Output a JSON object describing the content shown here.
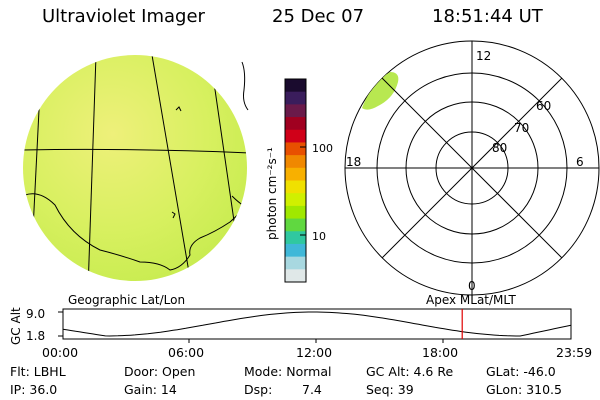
{
  "header": {
    "instrument": "Ultraviolet Imager",
    "date": "25 Dec 07",
    "time": "18:51:44 UT"
  },
  "colorbar": {
    "unit_label": "photon cm⁻²s⁻¹",
    "tick_high": "100",
    "tick_low": "10",
    "colors": [
      "#1a0b2e",
      "#3a1d5c",
      "#6a1a4a",
      "#a00020",
      "#d00018",
      "#e85000",
      "#f08800",
      "#f8b000",
      "#f0e000",
      "#d0f000",
      "#a0e800",
      "#60d840",
      "#30c8a0",
      "#40b8d8",
      "#a8d8e0",
      "#e0e8e8"
    ]
  },
  "polar_plot": {
    "mlt_labels": {
      "top": "12",
      "left": "18",
      "right": "6",
      "bottom": "0"
    },
    "lat_labels": [
      "60",
      "70",
      "80"
    ]
  },
  "left_panel_label": "Geographic Lat/Lon",
  "right_panel_label": "Apex MLat/MLT",
  "altitude_plot": {
    "ylabel": "GC Alt",
    "y_ticks": [
      "9.0",
      "1.8"
    ],
    "x_ticks": [
      "00:00",
      "06:00",
      "12:00",
      "18:00",
      "23:59"
    ],
    "current_marker_hour": 18.86,
    "marker_color": "#e00000"
  },
  "info": {
    "filter": "Flt: LBHL",
    "ip": "IP: 36.0",
    "door": "Door: Open",
    "gain": "Gain: 14",
    "mode": "Mode: Normal",
    "dsp_label": "Dsp:",
    "dsp_value": "7.4",
    "gc_alt": "GC Alt: 4.6 Re",
    "seq": "Seq: 39",
    "glat": "GLat: -46.0",
    "glon": "GLon: 310.5"
  },
  "image_fill_color": "#d8f060"
}
